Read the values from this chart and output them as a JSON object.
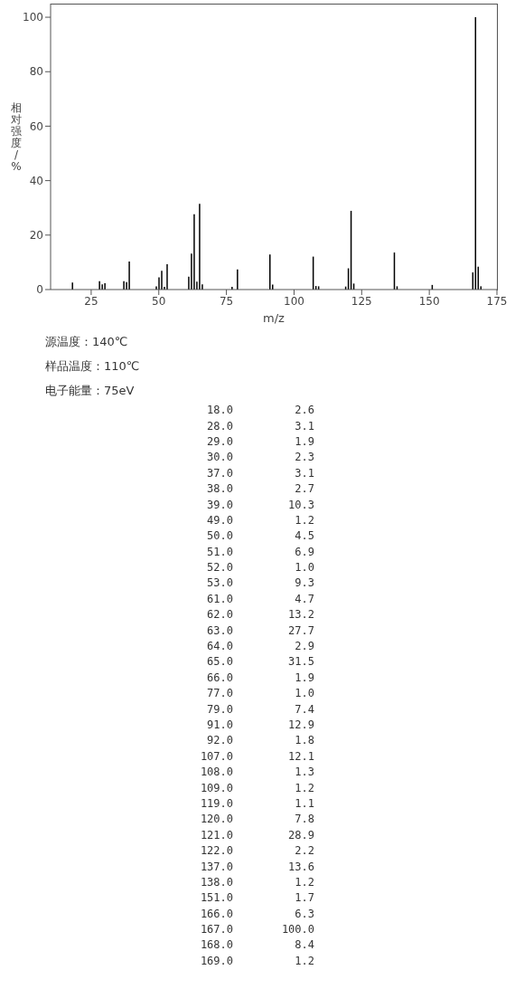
{
  "chart_data": [
    {
      "type": "bar",
      "xlabel": "m/z",
      "ylabel": "相对强度/%",
      "color": "#000000",
      "x": [
        18,
        28,
        29,
        30,
        37,
        38,
        39,
        49,
        50,
        51,
        52,
        53,
        61,
        62,
        63,
        64,
        65,
        66,
        77,
        79,
        91,
        92,
        107,
        108,
        109,
        119,
        120,
        121,
        122,
        137,
        138,
        151,
        166,
        167,
        168,
        169
      ],
      "values": [
        2.6,
        3.1,
        1.9,
        2.3,
        3.1,
        2.7,
        10.3,
        1.2,
        4.5,
        6.9,
        1.0,
        9.3,
        4.7,
        13.2,
        27.7,
        2.9,
        31.5,
        1.9,
        1.0,
        7.4,
        12.9,
        1.8,
        12.1,
        1.3,
        1.2,
        1.1,
        7.8,
        28.9,
        2.2,
        13.6,
        1.2,
        1.7,
        6.3,
        100.0,
        8.4,
        1.2
      ],
      "xlim": [
        10,
        175
      ],
      "xticks": [
        25,
        50,
        75,
        100,
        125,
        150,
        175
      ],
      "ylim": [
        0,
        105
      ],
      "yticks": [
        0,
        20,
        40,
        60,
        80,
        100
      ],
      "annotations": [
        "源温度：140℃",
        "样品温度：110℃",
        "电子能量：75eV"
      ]
    },
    {
      "type": "other",
      "categories": [
        "18.0",
        "28.0",
        "29.0",
        "30.0",
        "37.0",
        "38.0",
        "39.0",
        "49.0",
        "50.0",
        "51.0",
        "52.0",
        "53.0",
        "61.0",
        "62.0",
        "63.0",
        "64.0",
        "65.0",
        "66.0",
        "77.0",
        "79.0",
        "91.0",
        "92.0",
        "107.0",
        "108.0",
        "109.0",
        "119.0",
        "120.0",
        "121.0",
        "122.0",
        "137.0",
        "138.0",
        "151.0",
        "166.0",
        "167.0",
        "168.0",
        "169.0"
      ],
      "value_labels": [
        "2.6",
        "3.1",
        "1.9",
        "2.3",
        "3.1",
        "2.7",
        "10.3",
        "1.2",
        "4.5",
        "6.9",
        "1.0",
        "9.3",
        "4.7",
        "13.2",
        "27.7",
        "2.9",
        "31.5",
        "1.9",
        "1.0",
        "7.4",
        "12.9",
        "1.8",
        "12.1",
        "1.3",
        "1.2",
        "1.1",
        "7.8",
        "28.9",
        "2.2",
        "13.6",
        "1.2",
        "1.7",
        "6.3",
        "100.0",
        "8.4",
        "1.2"
      ]
    }
  ]
}
